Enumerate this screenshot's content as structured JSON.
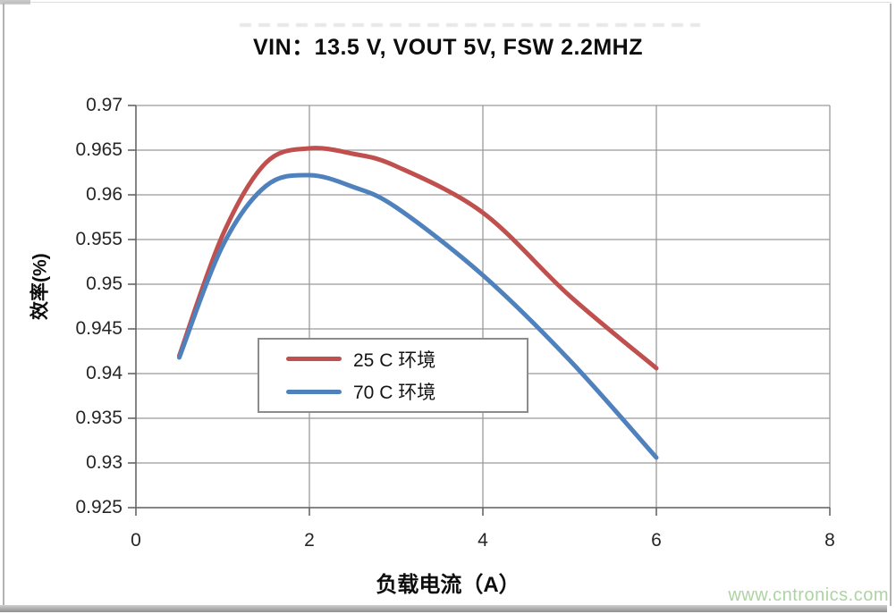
{
  "page": {
    "watermark": "www.cntronics.com"
  },
  "colors": {
    "series_25c": "#C0504D",
    "series_70c": "#4F81BD",
    "gridline": "#9a9a9a",
    "axis": "#666666",
    "frame": "#b3b3b3",
    "watermark": "#aed3a2"
  },
  "chart_data": {
    "type": "line",
    "title": "VIN：13.5 V, VOUT 5V, FSW 2.2MHZ",
    "xlabel": "负载电流（A）",
    "ylabel": "效率(%)",
    "x": [
      0.5,
      1,
      1.5,
      2,
      2.5,
      3,
      4,
      5,
      6
    ],
    "series": [
      {
        "name": "25 C 环境",
        "color": "#C0504D",
        "values": [
          0.942,
          0.9555,
          0.9636,
          0.9652,
          0.9646,
          0.9632,
          0.958,
          0.9487,
          0.9406
        ]
      },
      {
        "name": "70 C 环境",
        "color": "#4F81BD",
        "values": [
          0.9418,
          0.9543,
          0.961,
          0.9622,
          0.9609,
          0.9586,
          0.951,
          0.9415,
          0.9306
        ]
      }
    ],
    "xlim": [
      0,
      8
    ],
    "ylim": [
      0.925,
      0.97
    ],
    "x_ticks": [
      0,
      2,
      4,
      6,
      8
    ],
    "y_ticks": [
      0.925,
      0.93,
      0.935,
      0.94,
      0.945,
      0.95,
      0.955,
      0.96,
      0.965,
      0.97
    ],
    "grid": true,
    "legend_position": "inside-center-left",
    "smooth_lines": true
  }
}
